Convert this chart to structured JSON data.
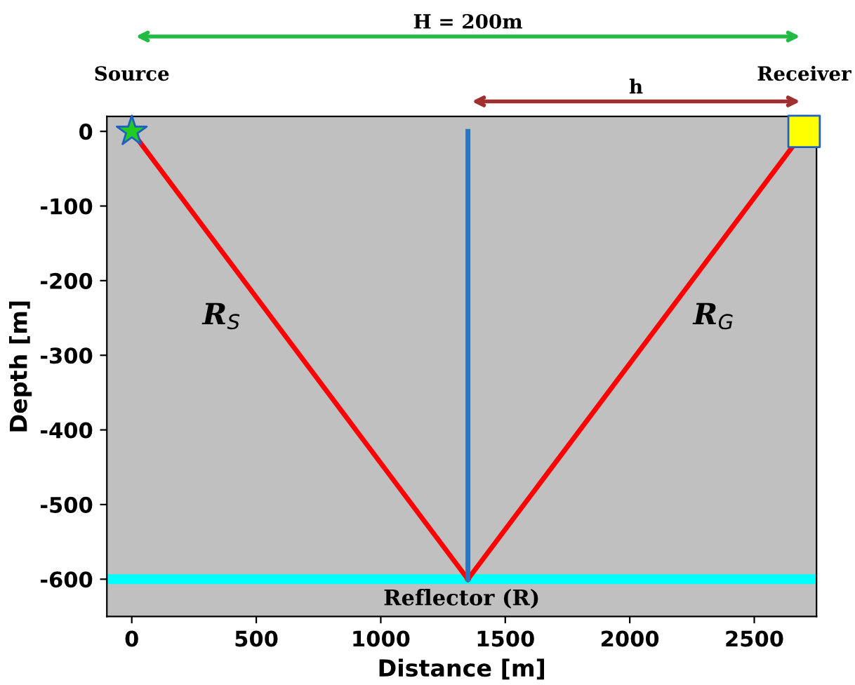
{
  "chart_data": {
    "type": "line",
    "xlabel": "Distance [m]",
    "ylabel": "Depth [m]",
    "xlim": [
      -100,
      2750
    ],
    "ylim": [
      -650,
      20
    ],
    "xticks": [
      0,
      500,
      1000,
      1500,
      2000,
      2500
    ],
    "yticks": [
      {
        "value": 0,
        "label": "0"
      },
      {
        "value": -100,
        "label": "-100"
      },
      {
        "value": -200,
        "label": "-200"
      },
      {
        "value": -300,
        "label": "-300"
      },
      {
        "value": -400,
        "label": "-400"
      },
      {
        "value": -500,
        "label": "-500"
      },
      {
        "value": -600,
        "label": "-600"
      }
    ],
    "grid": false,
    "legend": false,
    "series": [
      {
        "name": "R$_{S}$",
        "color": "#ff0000",
        "x": [
          0,
          1350
        ],
        "values": [
          0,
          -600
        ]
      },
      {
        "name": "R$_{G}$",
        "color": "#ff0000",
        "x": [
          1350,
          2700
        ],
        "values": [
          -600,
          0
        ]
      },
      {
        "color": "#1f78c8",
        "x": [
          1350,
          1350
        ],
        "values": [
          0,
          -600
        ]
      },
      {
        "name": "Source",
        "type": "scatter",
        "marker": "star",
        "color": "#22cc22",
        "x": [
          0
        ],
        "values": [
          0
        ]
      },
      {
        "name": "Receiver",
        "type": "scatter",
        "marker": "square",
        "color": "#ffff00",
        "x": [
          2700
        ],
        "values": [
          0
        ]
      }
    ],
    "ref_lines": [
      {
        "axis": "y",
        "value": -600,
        "label": "Reflector (R)",
        "color": "#00ffff"
      }
    ],
    "annotations": [
      "H = 200m",
      "h"
    ]
  }
}
